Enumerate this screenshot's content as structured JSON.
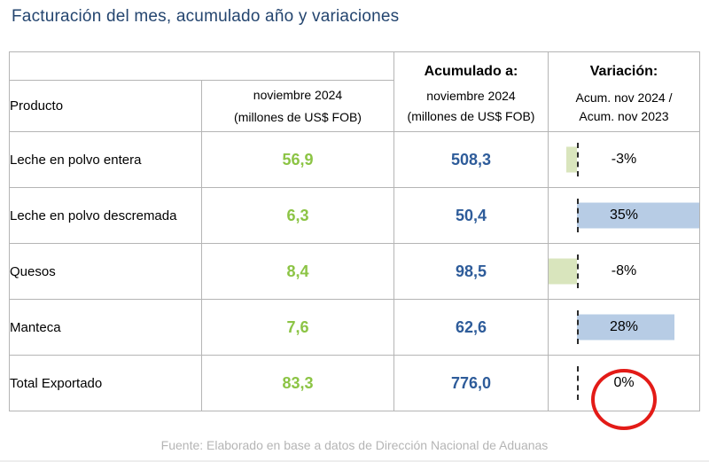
{
  "title": "Facturación del mes, acumulado año y variaciones",
  "footer": "Fuente: Elaborado en base a datos de Dirección Nacional de Aduanas",
  "colors": {
    "title_blue": "#24456F",
    "value_green": "#8CC445",
    "value_blue": "#2E5C9A",
    "bar_green": "#D9E5BD",
    "bar_blue": "#B7CCE5",
    "circle_red": "#E31B17",
    "border_gray": "#B5B5B5",
    "footer_gray": "#B5B5B5"
  },
  "table": {
    "header": {
      "producto": "Producto",
      "month_line1": "noviembre 2024",
      "month_line2": "(millones de US$ FOB)",
      "acum_title": "Acumulado a:",
      "acum_line1": "noviembre 2024",
      "acum_line2": "(millones de US$ FOB)",
      "var_title": "Variación:",
      "var_line1": "Acum. nov 2024 /",
      "var_line2": "Acum. nov 2023"
    },
    "bar_axis": {
      "min": -8,
      "max": 35
    },
    "rows": [
      {
        "product": "Leche en polvo entera",
        "month": "56,9",
        "accumulated": "508,3",
        "variation_label": "-3%",
        "variation_value": -3,
        "highlighted": false
      },
      {
        "product": "Leche en polvo descremada",
        "month": "6,3",
        "accumulated": "50,4",
        "variation_label": "35%",
        "variation_value": 35,
        "highlighted": false
      },
      {
        "product": "Quesos",
        "month": "8,4",
        "accumulated": "98,5",
        "variation_label": "-8%",
        "variation_value": -8,
        "highlighted": false
      },
      {
        "product": "Manteca",
        "month": "7,6",
        "accumulated": "62,6",
        "variation_label": "28%",
        "variation_value": 28,
        "highlighted": false
      },
      {
        "product": "Total Exportado",
        "month": "83,3",
        "accumulated": "776,0",
        "variation_label": "0%",
        "variation_value": 0,
        "highlighted": true
      }
    ]
  },
  "chart_data": {
    "type": "table",
    "title": "Facturación del mes, acumulado año y variaciones",
    "columns": [
      "Producto",
      "noviembre 2024 (millones de US$ FOB)",
      "Acumulado a: noviembre 2024 (millones de US$ FOB)",
      "Variación: Acum. nov 2024 / Acum. nov 2023"
    ],
    "rows": [
      [
        "Leche en polvo entera",
        56.9,
        508.3,
        "-3%"
      ],
      [
        "Leche en polvo descremada",
        6.3,
        50.4,
        "35%"
      ],
      [
        "Quesos",
        8.4,
        98.5,
        "-8%"
      ],
      [
        "Manteca",
        7.6,
        62.6,
        "28%"
      ],
      [
        "Total Exportado",
        83.3,
        776.0,
        "0%"
      ]
    ],
    "variation_bars": {
      "type": "bar",
      "orientation": "horizontal",
      "categories": [
        "Leche en polvo entera",
        "Leche en polvo descremada",
        "Quesos",
        "Manteca",
        "Total Exportado"
      ],
      "values": [
        -3,
        35,
        -8,
        28,
        0
      ],
      "axis_range": [
        -8,
        35
      ],
      "negative_color": "#D9E5BD",
      "positive_color": "#B7CCE5",
      "zero_axis_style": "dashed"
    },
    "annotation": "red circle drawn around the 0% variation of Total Exportado"
  }
}
